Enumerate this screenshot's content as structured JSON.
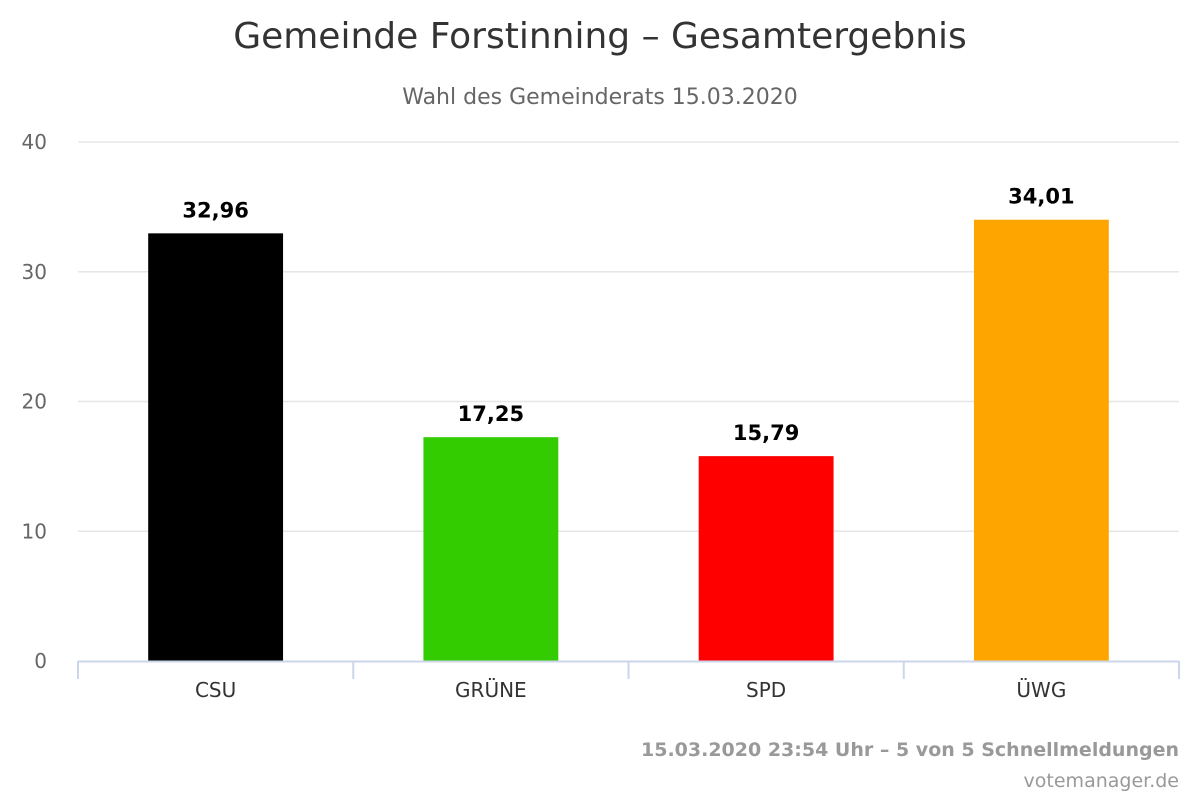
{
  "chart_data": {
    "type": "bar",
    "title": "Gemeinde Forstinning – Gesamtergebnis",
    "subtitle": "Wahl des Gemeinderats 15.03.2020",
    "categories": [
      "CSU",
      "GRÜNE",
      "SPD",
      "ÜWG"
    ],
    "values": [
      32.96,
      17.25,
      15.79,
      34.01
    ],
    "value_labels": [
      "32,96",
      "17,25",
      "15,79",
      "34,01"
    ],
    "colors": [
      "#000000",
      "#33cc00",
      "#ff0000",
      "#ffa500"
    ],
    "ylim": [
      0,
      40
    ],
    "yticks": [
      0,
      10,
      20,
      30,
      40
    ],
    "xlabel": "",
    "ylabel": "",
    "grid": true,
    "legend": "none"
  },
  "credits": {
    "line1": "15.03.2020 23:54 Uhr – 5 von 5 Schnellmeldungen",
    "line2": "votemanager.de"
  },
  "colors": {
    "grid": "#e6e6e6",
    "axis": "#ccd6eb"
  }
}
